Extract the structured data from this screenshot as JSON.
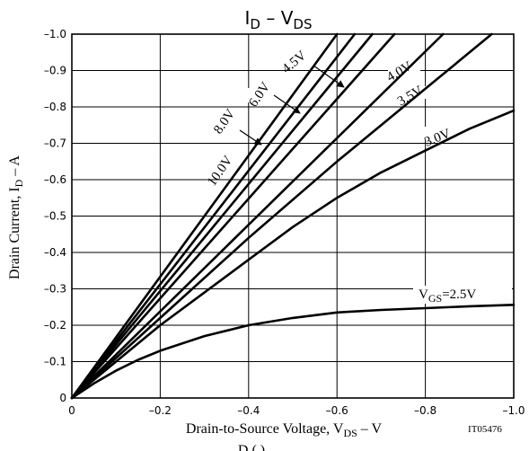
{
  "chart_data": {
    "type": "line",
    "title": {
      "main": "I",
      "sub": "D",
      "dash": " – ",
      "main2": "V",
      "sub2": "DS"
    },
    "xlabel": {
      "pre": "Drain-to-Source Voltage, V",
      "sub": "DS",
      "post": " – V"
    },
    "ylabel": {
      "pre": "Drain Current, I",
      "sub": "D",
      "post": " – A"
    },
    "figure_code": "IT05476",
    "footer_partial": "D    (   )",
    "xlim": [
      0,
      -1.0
    ],
    "ylim": [
      0,
      -1.0
    ],
    "xticks": [
      "0",
      "–0.2",
      "–0.4",
      "–0.6",
      "–0.8",
      "–1.0"
    ],
    "xtick_values": [
      0,
      -0.2,
      -0.4,
      -0.6,
      -0.8,
      -1.0
    ],
    "yticks": [
      "0",
      "–0.1",
      "–0.2",
      "–0.3",
      "–0.4",
      "–0.5",
      "–0.6",
      "–0.7",
      "–0.8",
      "–0.9",
      "–1.0"
    ],
    "ytick_values": [
      0,
      -0.1,
      -0.2,
      -0.3,
      -0.4,
      -0.5,
      -0.6,
      -0.7,
      -0.8,
      -0.9,
      -1.0
    ],
    "grid": true,
    "series": [
      {
        "name": "10.0V",
        "x": [
          0,
          -0.6
        ],
        "y": [
          0,
          -1.0
        ]
      },
      {
        "name": "8.0V",
        "x": [
          0,
          -0.64
        ],
        "y": [
          0,
          -1.0
        ]
      },
      {
        "name": "6.0V",
        "x": [
          0,
          -0.68
        ],
        "y": [
          0,
          -1.0
        ]
      },
      {
        "name": "4.5V",
        "x": [
          0,
          -0.73
        ],
        "y": [
          0,
          -1.0
        ]
      },
      {
        "name": "4.0V",
        "x": [
          0,
          -0.84
        ],
        "y": [
          0,
          -1.0
        ]
      },
      {
        "name": "3.5V",
        "x": [
          0,
          -0.2,
          -0.4,
          -0.6,
          -0.8,
          -0.95
        ],
        "y": [
          0,
          -0.22,
          -0.44,
          -0.65,
          -0.85,
          -1.0
        ]
      },
      {
        "name": "3.0V",
        "x": [
          0,
          -0.1,
          -0.2,
          -0.3,
          -0.4,
          -0.5,
          -0.6,
          -0.7,
          -0.8,
          -0.9,
          -1.0
        ],
        "y": [
          0,
          -0.1,
          -0.2,
          -0.29,
          -0.38,
          -0.47,
          -0.55,
          -0.62,
          -0.68,
          -0.74,
          -0.79
        ]
      },
      {
        "name": "VGS=2.5V",
        "x": [
          0,
          -0.05,
          -0.1,
          -0.15,
          -0.2,
          -0.3,
          -0.4,
          -0.5,
          -0.6,
          -0.7,
          -0.8,
          -0.9,
          -1.0
        ],
        "y": [
          0,
          -0.04,
          -0.075,
          -0.105,
          -0.13,
          -0.17,
          -0.2,
          -0.22,
          -0.235,
          -0.242,
          -0.247,
          -0.252,
          -0.256
        ]
      }
    ],
    "curve_labels": {
      "v10": "10.0V",
      "v8": "8.0V",
      "v6": "6.0V",
      "v45": "4.5V",
      "v4": "4.0V",
      "v35": "3.5V",
      "v3": "3.0V",
      "vgs_pre": "V",
      "vgs_sub": "GS",
      "vgs_post": "=2.5V"
    }
  }
}
